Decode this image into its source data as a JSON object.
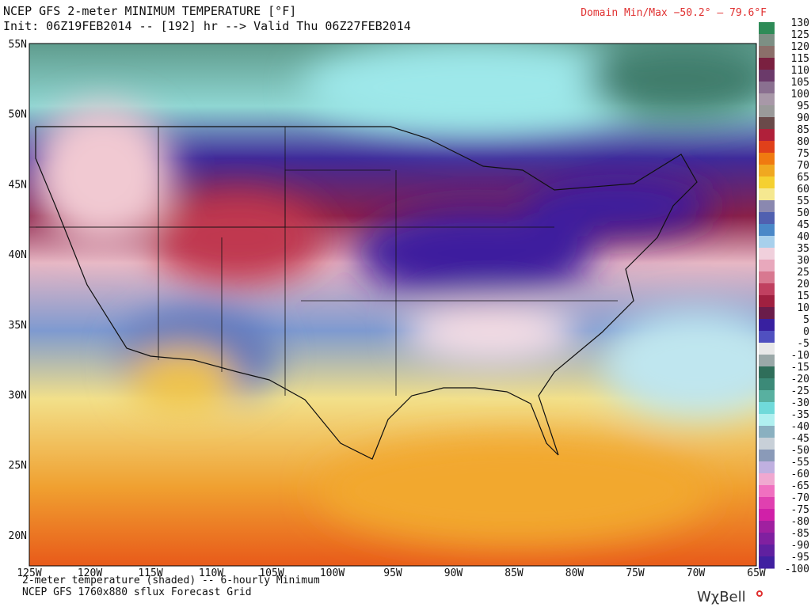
{
  "header": {
    "title": "NCEP GFS 2-meter MINIMUM TEMPERATURE [°F]",
    "init": "Init: 06Z19FEB2014 -- [192] hr --> Valid Thu 06Z27FEB2014",
    "domain_minmax": "Domain Min/Max −50.2° –  79.6°F"
  },
  "map": {
    "lat_labels": [
      "55N",
      "50N",
      "45N",
      "40N",
      "35N",
      "30N",
      "25N",
      "20N"
    ],
    "lon_labels": [
      "125W",
      "120W",
      "115W",
      "110W",
      "105W",
      "100W",
      "95W",
      "90W",
      "85W",
      "80W",
      "75W",
      "70W",
      "65W"
    ]
  },
  "colorbar": {
    "labels": [
      130,
      125,
      120,
      115,
      110,
      105,
      100,
      95,
      90,
      85,
      80,
      75,
      70,
      65,
      60,
      55,
      50,
      45,
      40,
      35,
      30,
      25,
      20,
      15,
      10,
      5,
      0,
      -5,
      -10,
      -15,
      -20,
      -25,
      -30,
      -35,
      -40,
      -45,
      -50,
      -55,
      -60,
      -65,
      -70,
      -75,
      -80,
      -85,
      -90,
      -95,
      -100
    ]
  },
  "footer": {
    "line1": "2-meter temperature (shaded) -- 6-hourly Minimum",
    "line2": "NCEP GFS 1760x880 sflux Forecast Grid",
    "logo": "WχBell"
  }
}
